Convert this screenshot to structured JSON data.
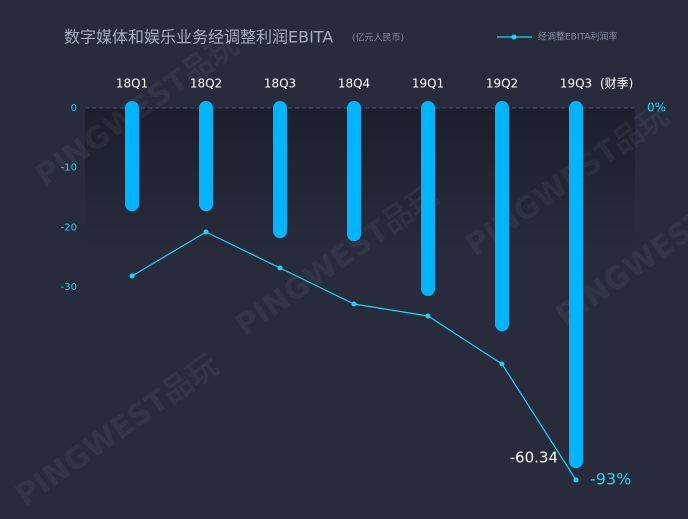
{
  "chart_data": {
    "type": "bar",
    "title": "数字媒体和娱乐业务经调整利润EBITA",
    "subtitle": "(亿元人民币)",
    "x_label": "(财季)",
    "watermark": "PINGWEST品玩",
    "categories": [
      "18Q1",
      "18Q2",
      "18Q3",
      "18Q4",
      "19Q1",
      "19Q2",
      "19Q3"
    ],
    "ylim": [
      -67,
      0
    ],
    "yticks": [
      0,
      -10,
      -20,
      -30
    ],
    "y2lim": [
      -100,
      0
    ],
    "y2ticks": [
      {
        "value": 0,
        "label": "0%"
      }
    ],
    "legend": "top-right",
    "series": [
      {
        "name": null,
        "type": "bar",
        "color": "#00b4ff",
        "values": [
          -17.3,
          -17.3,
          -21.8,
          -22.3,
          -31.5,
          -37.4,
          -60.34
        ],
        "value_labels": [
          null,
          null,
          null,
          null,
          null,
          null,
          "-60.34"
        ]
      },
      {
        "name": "经调整EBITA利润率",
        "type": "line",
        "color": "#19d6f5",
        "axis": "y2",
        "values": [
          -42,
          -31,
          -40,
          -49,
          -52,
          -64,
          -93
        ],
        "value_labels": [
          null,
          null,
          null,
          null,
          null,
          null,
          "-93%"
        ]
      }
    ]
  }
}
